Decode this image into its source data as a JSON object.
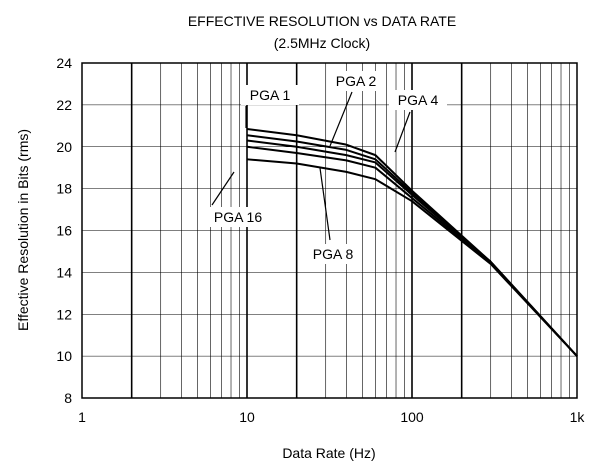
{
  "chart_data": {
    "type": "line",
    "title": "EFFECTIVE RESOLUTION vs DATA RATE",
    "subtitle": "(2.5MHz Clock)",
    "xlabel": "Data Rate (Hz)",
    "ylabel": "Effective Resolution in Bits (rms)",
    "x_scale": "log",
    "xlim": [
      1,
      1000
    ],
    "ylim": [
      8,
      24
    ],
    "x_ticks": [
      {
        "value": 1,
        "label": "1"
      },
      {
        "value": 10,
        "label": "10"
      },
      {
        "value": 100,
        "label": "100"
      },
      {
        "value": 1000,
        "label": "1k"
      }
    ],
    "y_ticks": [
      8,
      10,
      12,
      14,
      16,
      18,
      20,
      22,
      24
    ],
    "grid": true,
    "series": [
      {
        "name": "PGA 1",
        "x": [
          10,
          20,
          40,
          60,
          100,
          300,
          1000
        ],
        "y": [
          20.85,
          20.55,
          20.1,
          19.6,
          17.9,
          14.5,
          10.0
        ]
      },
      {
        "name": "PGA 2",
        "x": [
          10,
          20,
          40,
          60,
          100,
          300,
          1000
        ],
        "y": [
          20.55,
          20.25,
          19.85,
          19.4,
          17.8,
          14.5,
          10.0
        ]
      },
      {
        "name": "PGA 4",
        "x": [
          10,
          20,
          40,
          60,
          100,
          300,
          1000
        ],
        "y": [
          20.3,
          20.0,
          19.6,
          19.25,
          17.7,
          14.5,
          10.0
        ]
      },
      {
        "name": "PGA 8",
        "x": [
          10,
          20,
          40,
          60,
          100,
          300,
          1000
        ],
        "y": [
          20.0,
          19.7,
          19.35,
          19.0,
          17.55,
          14.45,
          10.0
        ]
      },
      {
        "name": "PGA 16",
        "x": [
          10,
          20,
          40,
          60,
          100,
          300,
          1000
        ],
        "y": [
          19.4,
          19.2,
          18.8,
          18.45,
          17.4,
          14.4,
          10.0
        ]
      }
    ],
    "annotations": [
      {
        "text": "PGA 1"
      },
      {
        "text": "PGA 2"
      },
      {
        "text": "PGA 4"
      },
      {
        "text": "PGA 8"
      },
      {
        "text": "PGA 16"
      }
    ]
  }
}
